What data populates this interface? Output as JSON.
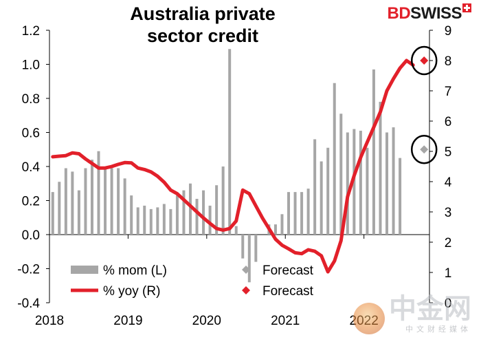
{
  "title": "Australia private sector credit",
  "logo": {
    "part1": "BD",
    "part2": "SWISS"
  },
  "watermark": {
    "main": "中金网",
    "sub": "中文财经媒体"
  },
  "chart_data": {
    "type": "bar",
    "title": "Australia private sector credit",
    "x_tick_labels": [
      "2018",
      "2019",
      "2020",
      "2021",
      "2022"
    ],
    "left_axis": {
      "ylim": [
        -0.4,
        1.2
      ],
      "ticks": [
        "-0.4",
        "-0.2",
        "0.0",
        "0.2",
        "0.4",
        "0.6",
        "0.8",
        "1.0",
        "1.2"
      ]
    },
    "right_axis": {
      "ylim": [
        0,
        9
      ],
      "ticks": [
        "0",
        "1",
        "2",
        "3",
        "4",
        "5",
        "6",
        "7",
        "8",
        "9"
      ]
    },
    "series": [
      {
        "name": "% mom (L)",
        "type": "bar",
        "axis": "left",
        "color": "#a6a6a6",
        "values": [
          0.25,
          0.31,
          0.39,
          0.37,
          0.26,
          0.39,
          0.44,
          0.49,
          0.39,
          0.39,
          0.39,
          0.33,
          0.23,
          0.16,
          0.17,
          0.15,
          0.16,
          0.18,
          0.15,
          0.23,
          0.26,
          0.3,
          0.21,
          0.26,
          0.17,
          0.29,
          0.4,
          1.09,
          0.05,
          -0.14,
          -0.28,
          -0.16,
          0.0,
          0.06,
          0.06,
          0.12,
          0.25,
          0.25,
          0.25,
          0.27,
          0.56,
          0.43,
          0.51,
          0.89,
          0.71,
          0.6,
          0.62,
          0.61,
          0.51,
          0.97,
          0.78,
          0.6,
          0.63,
          0.45
        ]
      },
      {
        "name": "% yoy (R)",
        "type": "line",
        "axis": "right",
        "color": "#e2202a",
        "values": [
          4.82,
          4.84,
          4.86,
          4.95,
          4.92,
          4.75,
          4.6,
          4.45,
          4.45,
          4.5,
          4.57,
          4.63,
          4.62,
          4.45,
          4.4,
          4.32,
          4.18,
          3.98,
          3.72,
          3.6,
          3.4,
          3.2,
          3.0,
          2.8,
          2.62,
          2.45,
          2.4,
          2.45,
          2.7,
          3.72,
          3.6,
          3.2,
          2.8,
          2.45,
          2.1,
          1.9,
          1.78,
          1.65,
          1.62,
          1.75,
          1.7,
          1.55,
          1.02,
          1.38,
          2.05,
          3.5,
          4.2,
          4.8,
          5.3,
          5.8,
          6.3,
          7.0,
          7.4,
          7.75,
          8.0,
          7.85
        ]
      }
    ],
    "forecasts": [
      {
        "name": "Forecast",
        "series": "% mom (L)",
        "value": 0.5,
        "color": "#a6a6a6"
      },
      {
        "name": "Forecast",
        "series": "% yoy (R)",
        "value": 8.0,
        "color": "#e2202a"
      }
    ],
    "legend": {
      "position": "bottom-left",
      "items": [
        {
          "label": "% mom (L)",
          "kind": "bar",
          "color": "#a6a6a6"
        },
        {
          "label": "Forecast",
          "kind": "diamond",
          "color": "#a6a6a6"
        },
        {
          "label": "% yoy (R)",
          "kind": "line",
          "color": "#e2202a"
        },
        {
          "label": "Forecast",
          "kind": "diamond",
          "color": "#e2202a"
        }
      ]
    }
  }
}
